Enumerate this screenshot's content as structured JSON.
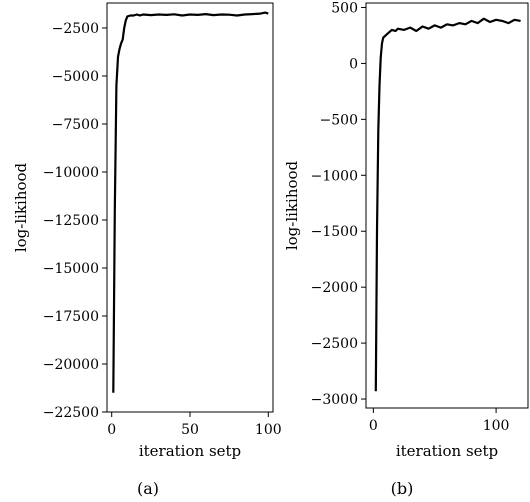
{
  "chart_data": [
    {
      "type": "line",
      "caption": "(a)",
      "xlabel": "iteration setp",
      "ylabel": "log-likihood",
      "xlim": [
        -3,
        103
      ],
      "ylim": [
        -22500,
        -1200
      ],
      "xticks": [
        0,
        50,
        100
      ],
      "yticks": [
        -22500,
        -20000,
        -17500,
        -15000,
        -12500,
        -10000,
        -7500,
        -5000,
        -2500
      ],
      "ytick_labels": [
        "−22500",
        "−20000",
        "−17500",
        "−15000",
        "−12500",
        "−10000",
        "−7500",
        "−5000",
        "−2500"
      ],
      "xtick_labels": [
        "0",
        "50",
        "100"
      ],
      "grid": false,
      "series": [
        {
          "color": "#000000",
          "x": [
            1,
            2,
            3,
            4,
            5,
            6,
            7,
            8,
            9,
            10,
            12,
            14,
            16,
            18,
            20,
            25,
            30,
            35,
            40,
            45,
            50,
            55,
            60,
            65,
            70,
            75,
            80,
            85,
            90,
            95,
            98,
            100
          ],
          "y": [
            -21500,
            -12000,
            -5500,
            -4000,
            -3600,
            -3300,
            -3100,
            -2500,
            -2100,
            -1900,
            -1850,
            -1850,
            -1800,
            -1850,
            -1800,
            -1830,
            -1800,
            -1820,
            -1790,
            -1850,
            -1800,
            -1820,
            -1780,
            -1830,
            -1800,
            -1810,
            -1850,
            -1800,
            -1780,
            -1750,
            -1700,
            -1750
          ]
        }
      ]
    },
    {
      "type": "line",
      "caption": "(b)",
      "xlabel": "iteration setp",
      "ylabel": "log-likihood",
      "xlim": [
        -6,
        126
      ],
      "ylim": [
        -3080,
        540
      ],
      "xticks": [
        0,
        100
      ],
      "yticks": [
        -3000,
        -2500,
        -2000,
        -1500,
        -1000,
        -500,
        0,
        500
      ],
      "ytick_labels": [
        "−3000",
        "−2500",
        "−2000",
        "−1500",
        "−1000",
        "−500",
        "0",
        "500"
      ],
      "xtick_labels": [
        "0",
        "100"
      ],
      "grid": false,
      "series": [
        {
          "color": "#000000",
          "x": [
            2,
            3,
            4,
            5,
            6,
            7,
            8,
            10,
            12,
            15,
            18,
            20,
            25,
            30,
            35,
            40,
            45,
            50,
            55,
            60,
            65,
            70,
            75,
            80,
            85,
            90,
            95,
            100,
            105,
            110,
            115,
            120
          ],
          "y": [
            -2930,
            -1500,
            -600,
            -200,
            50,
            180,
            230,
            250,
            270,
            300,
            290,
            310,
            300,
            320,
            290,
            330,
            310,
            340,
            320,
            350,
            340,
            360,
            350,
            380,
            360,
            400,
            370,
            390,
            380,
            360,
            390,
            380
          ]
        }
      ]
    }
  ]
}
